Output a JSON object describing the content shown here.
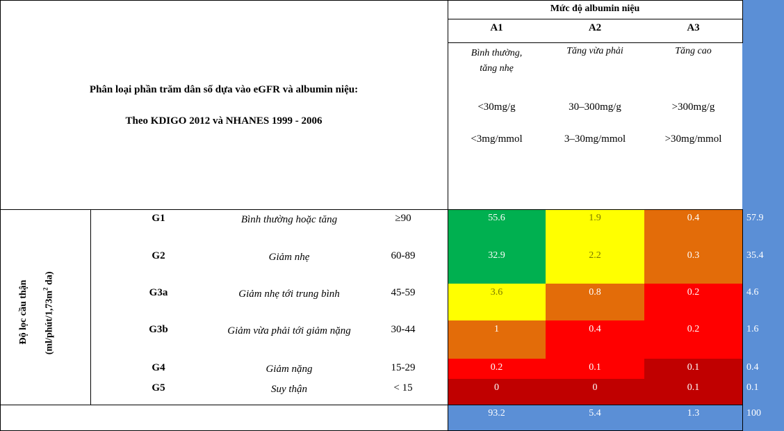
{
  "title": {
    "line1": "Phân loại phần trăm dân số dựa vào eGFR và albumin niệu:",
    "line2": "Theo KDIGO 2012 và NHANES 1999 - 2006"
  },
  "albumin": {
    "heading": "Mức độ albumin niệu",
    "columns": [
      {
        "code": "A1",
        "desc": "Bình thường, tăng nhẹ",
        "mg_g": "<30mg/g",
        "mg_mmol": "<3mg/mmol"
      },
      {
        "code": "A2",
        "desc": "Tăng vừa phải",
        "mg_g": "30–300mg/g",
        "mg_mmol": "3–30mg/mmol"
      },
      {
        "code": "A3",
        "desc": "Tăng cao",
        "mg_g": ">300mg/g",
        "mg_mmol": ">30mg/mmol"
      }
    ]
  },
  "gfr": {
    "label_line1": "Độ lọc cầu thận",
    "label_line2_prefix": "(ml/phút/1,73m",
    "label_sup": "2",
    "label_line2_suffix": " da)"
  },
  "rows": [
    {
      "code": "G1",
      "desc": "Bình thường hoặc tăng",
      "range": "≥90",
      "values": [
        "55.6",
        "1.9",
        "0.4"
      ],
      "total": "57.9",
      "colors": [
        "#00b050",
        "#ffff00",
        "#e36c09"
      ]
    },
    {
      "code": "G2",
      "desc": "Giảm nhẹ",
      "range": "60-89",
      "values": [
        "32.9",
        "2.2",
        "0.3"
      ],
      "total": "35.4",
      "colors": [
        "#00b050",
        "#ffff00",
        "#e36c09"
      ]
    },
    {
      "code": "G3a",
      "desc": "Giảm nhẹ tới trung bình",
      "range": "45-59",
      "values": [
        "3.6",
        "0.8",
        "0.2"
      ],
      "total": "4.6",
      "colors": [
        "#ffff00",
        "#e36c09",
        "#ff0000"
      ]
    },
    {
      "code": "G3b",
      "desc": "Giảm vừa phải tới giảm nặng",
      "range": "30-44",
      "values": [
        "1",
        "0.4",
        "0.2"
      ],
      "total": "1.6",
      "colors": [
        "#e36c09",
        "#ff0000",
        "#ff0000"
      ]
    },
    {
      "code": "G4",
      "desc": "Giảm nặng",
      "range": "15-29",
      "values": [
        "0.2",
        "0.1",
        "0.1"
      ],
      "total": "0.4",
      "colors": [
        "#ff0000",
        "#ff0000",
        "#c00000"
      ]
    },
    {
      "code": "G5",
      "desc": "Suy thận",
      "range": "< 15",
      "values": [
        "0",
        "0",
        "0.1"
      ],
      "total": "0.1",
      "colors": [
        "#c00000",
        "#c00000",
        "#c00000"
      ]
    }
  ],
  "totals": {
    "columns": [
      "93.2",
      "5.4",
      "1.3"
    ],
    "grand": "100"
  },
  "colors": {
    "total_blue": "#5b8fd6"
  }
}
